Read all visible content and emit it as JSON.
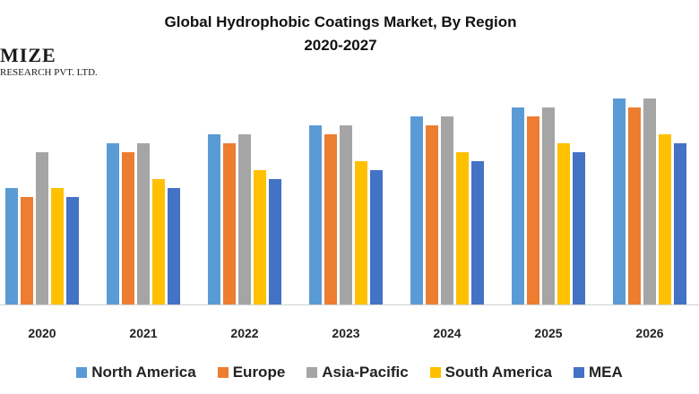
{
  "logo": {
    "main_text": "MIZE",
    "sub_text": "RESEARCH PVT. LTD."
  },
  "chart_data": {
    "type": "bar",
    "title": "Global Hydrophobic Coatings Market, By Region",
    "subtitle": "2020-2027",
    "xlabel": "",
    "ylabel": "",
    "ylim": [
      0,
      240
    ],
    "grid": false,
    "legend_position": "bottom",
    "categories": [
      "2020",
      "2021",
      "2022",
      "2023",
      "2024",
      "2025",
      "2026"
    ],
    "series": [
      {
        "name": "North America",
        "color": "#5B9BD5",
        "values": [
          130,
          180,
          190,
          200,
          210,
          220,
          230
        ]
      },
      {
        "name": "Europe",
        "color": "#ED7D31",
        "values": [
          120,
          170,
          180,
          190,
          200,
          210,
          220
        ]
      },
      {
        "name": "Asia-Pacific",
        "color": "#A5A5A5",
        "values": [
          170,
          180,
          190,
          200,
          210,
          220,
          230
        ]
      },
      {
        "name": "South America",
        "color": "#FFC000",
        "values": [
          130,
          140,
          150,
          160,
          170,
          180,
          190
        ]
      },
      {
        "name": "MEA",
        "color": "#4472C4",
        "values": [
          120,
          130,
          140,
          150,
          160,
          170,
          180
        ]
      }
    ]
  }
}
